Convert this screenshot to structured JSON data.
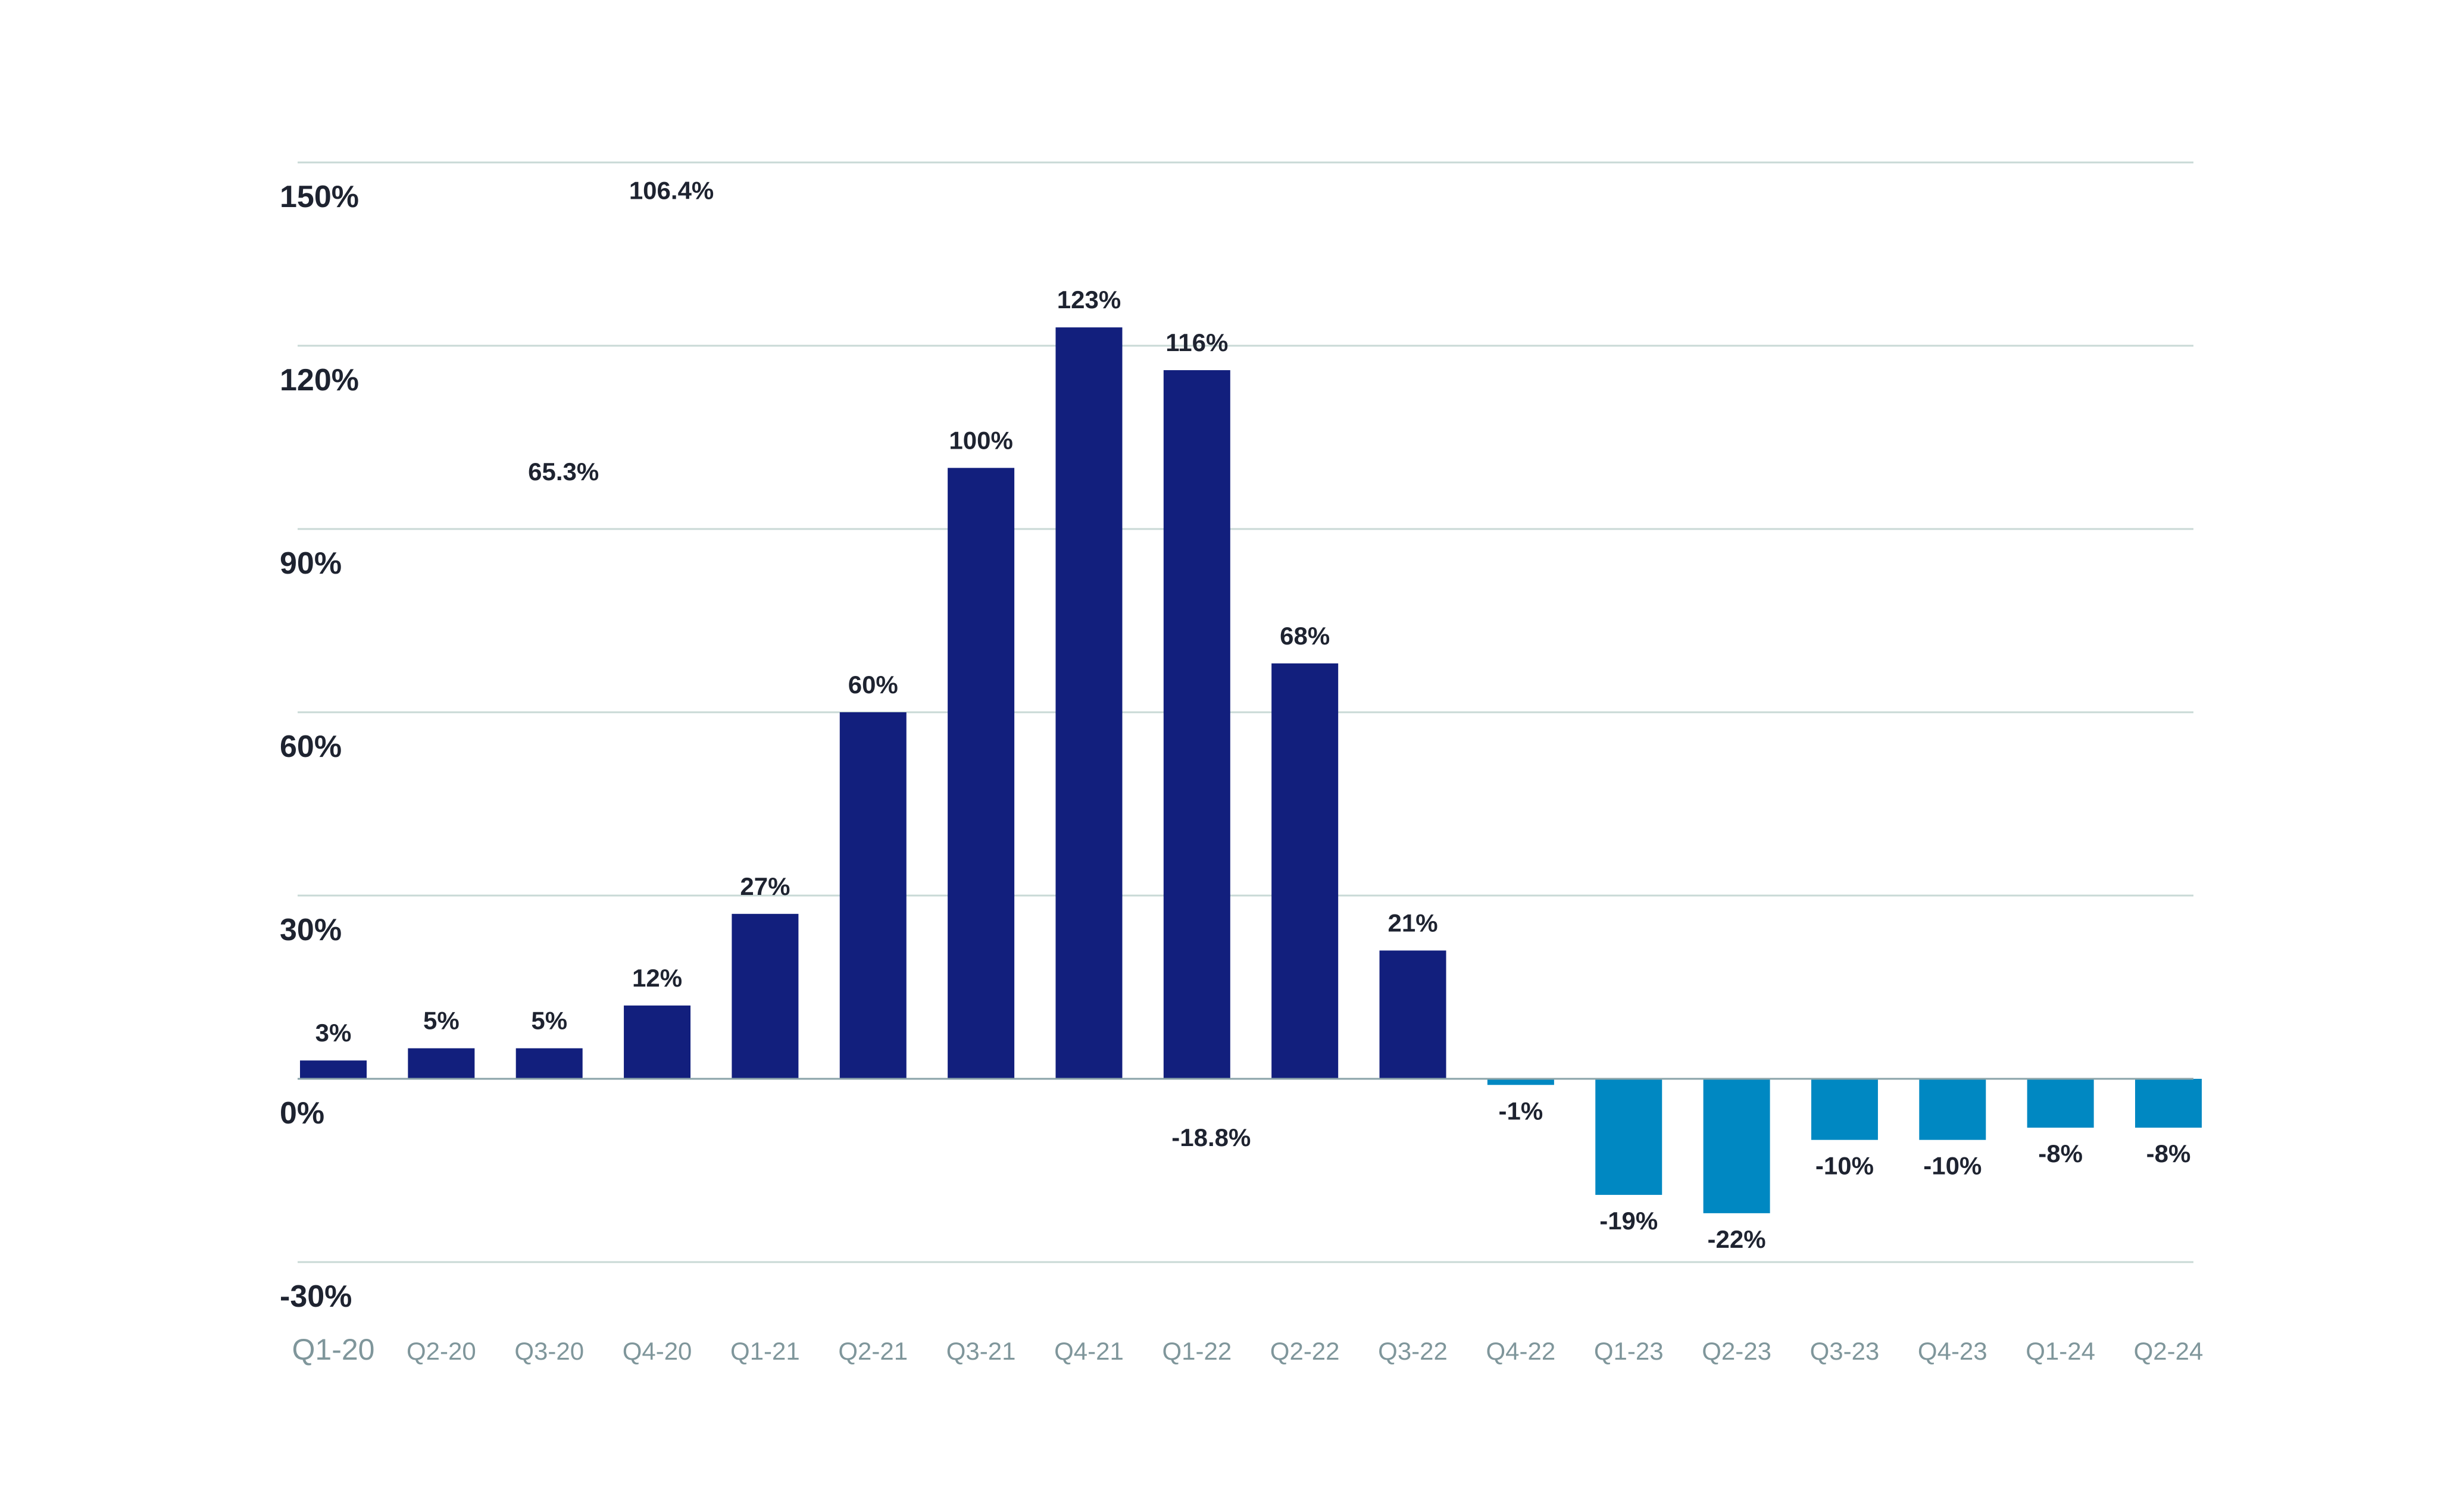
{
  "chart_data": {
    "type": "bar",
    "categories": [
      "Q1-20",
      "Q2-20",
      "Q3-20",
      "Q4-20",
      "Q1-21",
      "Q2-21",
      "Q3-21",
      "Q4-21",
      "Q1-22",
      "Q2-22",
      "Q3-22",
      "Q4-22",
      "Q1-23",
      "Q2-23",
      "Q3-23",
      "Q4-23",
      "Q1-24",
      "Q2-24"
    ],
    "values": [
      3,
      5,
      5,
      12,
      27,
      60,
      100,
      123,
      116,
      68,
      21,
      -1,
      -19,
      -22,
      -10,
      -10,
      -8,
      -8
    ],
    "data_labels": [
      "3%",
      "5%",
      "5%",
      "12%",
      "27%",
      "60%",
      "100%",
      "123%",
      "116%",
      "68%",
      "21%",
      "-1%",
      "-19%",
      "-22%",
      "-10%",
      "-10%",
      "-8%",
      "-8%"
    ],
    "y_ticks": [
      {
        "value": 150,
        "label": "150%"
      },
      {
        "value": 120,
        "label": "120%"
      },
      {
        "value": 90,
        "label": "90%"
      },
      {
        "value": 60,
        "label": "60%"
      },
      {
        "value": 30,
        "label": "30%"
      },
      {
        "value": 0,
        "label": "0%"
      },
      {
        "value": -30,
        "label": "-30%"
      }
    ],
    "ylim": [
      -30,
      150
    ],
    "grid": true,
    "legend": "none",
    "colors": {
      "positive": "#121f7d",
      "negative": "#0088c2",
      "grid": "#c9d9d6",
      "axis_text": "#7f969b"
    },
    "title": "",
    "xlabel": "",
    "ylabel": "",
    "annotations": [
      {
        "text": "106.4%",
        "x_category": "Q4-20",
        "y_value": 144
      },
      {
        "text": "65.3%",
        "x_category": "Q3-20",
        "y_value": 98
      },
      {
        "text": "-18.8%",
        "x_category": "Q1-22",
        "y_value": -11
      }
    ]
  }
}
